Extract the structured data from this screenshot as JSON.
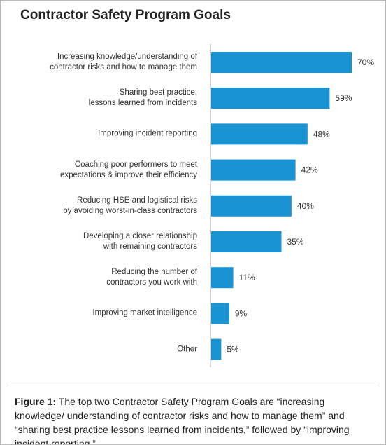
{
  "chart_data": {
    "type": "bar",
    "orientation": "horizontal",
    "title": "Contractor Safety Program Goals",
    "categories": [
      "Increasing knowledge/understanding of\ncontractor risks and how to manage them",
      "Sharing best practice,\nlessons learned from incidents",
      "Improving incident reporting",
      "Coaching poor performers to meet\nexpectations & improve their efficiency",
      "Reducing HSE and logistical risks\nby avoiding worst-in-class contractors",
      "Developing a closer relationship\nwith remaining contractors",
      "Reducing the number of\ncontractors you work with",
      "Improving market intelligence",
      "Other"
    ],
    "values": [
      70,
      59,
      48,
      42,
      40,
      35,
      11,
      9,
      5
    ],
    "value_labels": [
      "70%",
      "59%",
      "48%",
      "42%",
      "40%",
      "35%",
      "11%",
      "9%",
      "5%"
    ],
    "color": "#1a93d2"
  },
  "caption": {
    "label": "Figure 1:",
    "text": "The top two Contractor Safety Program Goals are “increasing knowledge/ understanding of contractor risks and how to manage them” and “sharing best practice lessons learned from incidents,” followed by “improving incident reporting.”"
  }
}
